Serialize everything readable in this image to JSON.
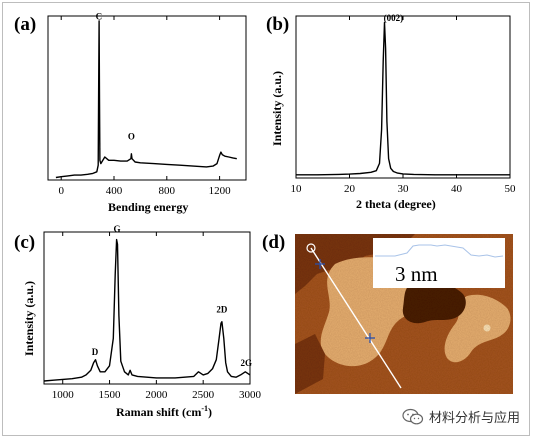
{
  "panels": {
    "a": {
      "label": "(a)",
      "xlabel": "Bending energy",
      "xticks": [
        "0",
        "400",
        "800",
        "1200"
      ]
    },
    "b": {
      "label": "(b)",
      "ylabel": "Intensity (a.u.)",
      "xlabel": "2 theta (degree)",
      "xticks": [
        "10",
        "20",
        "30",
        "40",
        "50"
      ],
      "peak": "(002)"
    },
    "c": {
      "label": "(c)",
      "ylabel": "Intensity (a.u.)",
      "xlabel_main": "Raman shift (cm",
      "xlabel_sup": "-1",
      "xlabel_end": ")",
      "xticks": [
        "1000",
        "1500",
        "2000",
        "2500",
        "3000"
      ]
    },
    "d": {
      "label": "(d)",
      "scale_text": "3 nm"
    }
  },
  "chart_data": [
    {
      "type": "line",
      "panel": "a",
      "title": "",
      "xlabel": "Bending energy",
      "ylabel": "",
      "xlim": [
        -100,
        1400
      ],
      "ylim": [
        0,
        1.0
      ],
      "xticks": [
        0,
        400,
        800,
        1200
      ],
      "annotations": [
        {
          "text": "C",
          "x": 285,
          "y": 0.96
        },
        {
          "text": "O",
          "x": 532,
          "y": 0.23
        }
      ],
      "series": [
        {
          "x": [
            -40,
            0,
            50,
            100,
            150,
            200,
            240,
            270,
            280,
            284,
            287,
            290,
            293,
            300,
            330,
            360,
            400,
            450,
            500,
            528,
            532,
            536,
            560,
            600,
            700,
            800,
            900,
            1000,
            1100,
            1150,
            1180,
            1200,
            1210,
            1220,
            1240,
            1270,
            1300,
            1330
          ],
          "y": [
            0.015,
            0.02,
            0.025,
            0.03,
            0.03,
            0.035,
            0.04,
            0.05,
            0.09,
            0.6,
            0.97,
            0.5,
            0.12,
            0.1,
            0.14,
            0.12,
            0.12,
            0.115,
            0.115,
            0.13,
            0.16,
            0.13,
            0.11,
            0.105,
            0.1,
            0.095,
            0.09,
            0.085,
            0.08,
            0.085,
            0.1,
            0.15,
            0.17,
            0.155,
            0.145,
            0.14,
            0.135,
            0.13
          ]
        }
      ]
    },
    {
      "type": "line",
      "panel": "b",
      "title": "",
      "xlabel": "2 theta (degree)",
      "ylabel": "Intensity (a.u.)",
      "xlim": [
        10,
        50
      ],
      "ylim": [
        0,
        1.0
      ],
      "xticks": [
        10,
        20,
        30,
        40,
        50
      ],
      "annotations": [
        {
          "text": "(002)",
          "x": 28.2,
          "y": 0.95
        }
      ],
      "series": [
        {
          "x": [
            10,
            14,
            18,
            20,
            22,
            24,
            25,
            25.6,
            26.0,
            26.3,
            26.55,
            26.75,
            27.0,
            27.3,
            27.7,
            28.2,
            29,
            30,
            32,
            36,
            40,
            45,
            50
          ],
          "y": [
            0.02,
            0.02,
            0.022,
            0.024,
            0.028,
            0.035,
            0.045,
            0.09,
            0.3,
            0.72,
            0.96,
            0.8,
            0.35,
            0.12,
            0.06,
            0.04,
            0.03,
            0.025,
            0.022,
            0.02,
            0.02,
            0.02,
            0.02
          ]
        }
      ]
    },
    {
      "type": "line",
      "panel": "c",
      "title": "",
      "xlabel": "Raman shift (cm-1)",
      "ylabel": "Intensity (a.u.)",
      "xlim": [
        800,
        3000
      ],
      "ylim": [
        0,
        1.0
      ],
      "xticks": [
        1000,
        1500,
        2000,
        2500,
        3000
      ],
      "annotations": [
        {
          "text": "D",
          "x": 1345,
          "y": 0.17
        },
        {
          "text": "G",
          "x": 1580,
          "y": 0.98
        },
        {
          "text": "2D",
          "x": 2700,
          "y": 0.45
        },
        {
          "text": "2G",
          "x": 2960,
          "y": 0.1
        }
      ],
      "series": [
        {
          "x": [
            800,
            900,
            1000,
            1100,
            1200,
            1250,
            1300,
            1330,
            1350,
            1370,
            1400,
            1450,
            1500,
            1540,
            1560,
            1575,
            1585,
            1600,
            1620,
            1660,
            1700,
            1720,
            1740,
            1800,
            1900,
            2000,
            2100,
            2200,
            2300,
            2400,
            2450,
            2500,
            2550,
            2600,
            2640,
            2670,
            2690,
            2700,
            2720,
            2740,
            2760,
            2800,
            2850,
            2900,
            2950,
            3000
          ],
          "y": [
            0.02,
            0.025,
            0.03,
            0.035,
            0.045,
            0.06,
            0.09,
            0.14,
            0.16,
            0.12,
            0.08,
            0.08,
            0.12,
            0.3,
            0.72,
            0.95,
            0.92,
            0.45,
            0.15,
            0.08,
            0.06,
            0.09,
            0.06,
            0.05,
            0.045,
            0.04,
            0.04,
            0.04,
            0.045,
            0.05,
            0.08,
            0.06,
            0.07,
            0.1,
            0.16,
            0.3,
            0.4,
            0.41,
            0.3,
            0.14,
            0.08,
            0.05,
            0.045,
            0.06,
            0.08,
            0.06
          ]
        }
      ]
    }
  ],
  "watermark": {
    "text": "材料分析与应用",
    "icon": "wechat-icon"
  },
  "colors": {
    "afm_dark": "#4a1d06",
    "afm_mid": "#a5551d",
    "afm_light": "#e7b071",
    "afm_highlight": "#fbe3b6",
    "line_marker": "#2b4fa8"
  }
}
